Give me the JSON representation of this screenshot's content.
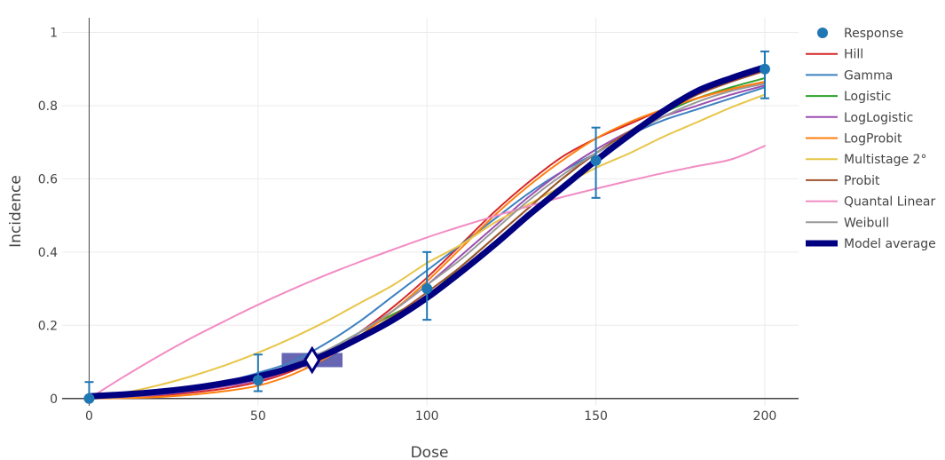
{
  "chart_data": {
    "type": "line",
    "xlabel": "Dose",
    "ylabel": "Incidence",
    "xlim": [
      -8,
      210
    ],
    "ylim": [
      -0.02,
      1.04
    ],
    "x_ticks": [
      0,
      50,
      100,
      150,
      200
    ],
    "x_tick_labels": [
      "0",
      "50",
      "100",
      "150",
      "200"
    ],
    "y_ticks": [
      0,
      0.2,
      0.4,
      0.6,
      0.8,
      1
    ],
    "y_tick_labels": [
      "0",
      "0.2",
      "0.4",
      "0.6",
      "0.8",
      "1"
    ],
    "grid": true,
    "legend_position": "right",
    "response": {
      "name": "Response",
      "color": "#1f77b4",
      "points": [
        {
          "x": 0,
          "y": 0,
          "lo": 0,
          "hi": 0.045
        },
        {
          "x": 50,
          "y": 0.05,
          "lo": 0.02,
          "hi": 0.12
        },
        {
          "x": 100,
          "y": 0.3,
          "lo": 0.215,
          "hi": 0.4
        },
        {
          "x": 150,
          "y": 0.65,
          "lo": 0.548,
          "hi": 0.74
        },
        {
          "x": 200,
          "y": 0.9,
          "lo": 0.82,
          "hi": 0.948
        }
      ]
    },
    "series": [
      {
        "name": "Hill",
        "color": "#d62728",
        "width": 2,
        "x": [
          0,
          10,
          20,
          30,
          40,
          50,
          60,
          70,
          80,
          90,
          100,
          110,
          120,
          130,
          140,
          150,
          160,
          170,
          180,
          190,
          200
        ],
        "y": [
          0,
          0.003,
          0.008,
          0.016,
          0.027,
          0.045,
          0.075,
          0.12,
          0.18,
          0.25,
          0.33,
          0.42,
          0.51,
          0.59,
          0.66,
          0.71,
          0.75,
          0.79,
          0.82,
          0.845,
          0.865
        ]
      },
      {
        "name": "Gamma",
        "color": "#3c80c0",
        "width": 2,
        "x": [
          0,
          10,
          20,
          30,
          40,
          50,
          60,
          70,
          80,
          90,
          100,
          110,
          120,
          130,
          140,
          150,
          160,
          170,
          180,
          190,
          200
        ],
        "y": [
          0,
          0.004,
          0.012,
          0.025,
          0.045,
          0.07,
          0.1,
          0.15,
          0.21,
          0.28,
          0.35,
          0.42,
          0.49,
          0.56,
          0.62,
          0.67,
          0.72,
          0.76,
          0.79,
          0.82,
          0.85
        ]
      },
      {
        "name": "Logistic",
        "color": "#2ca02c",
        "width": 2,
        "x": [
          0,
          10,
          20,
          30,
          40,
          50,
          60,
          70,
          80,
          90,
          100,
          110,
          120,
          130,
          140,
          150,
          160,
          170,
          180,
          190,
          200
        ],
        "y": [
          0.008,
          0.013,
          0.02,
          0.03,
          0.045,
          0.065,
          0.09,
          0.13,
          0.18,
          0.23,
          0.28,
          0.36,
          0.44,
          0.52,
          0.6,
          0.67,
          0.73,
          0.78,
          0.82,
          0.85,
          0.875
        ]
      },
      {
        "name": "LogLogistic",
        "color": "#9b4fb0",
        "width": 2,
        "x": [
          0,
          10,
          20,
          30,
          40,
          50,
          60,
          70,
          80,
          90,
          100,
          110,
          120,
          130,
          140,
          150,
          160,
          170,
          180,
          190,
          200
        ],
        "y": [
          0,
          0.003,
          0.01,
          0.02,
          0.033,
          0.05,
          0.08,
          0.12,
          0.18,
          0.24,
          0.31,
          0.39,
          0.47,
          0.55,
          0.62,
          0.68,
          0.73,
          0.77,
          0.8,
          0.83,
          0.855
        ]
      },
      {
        "name": "LogProbit",
        "color": "#ff7f0e",
        "width": 2,
        "x": [
          0,
          10,
          20,
          30,
          40,
          50,
          60,
          70,
          80,
          90,
          100,
          110,
          120,
          130,
          140,
          150,
          160,
          170,
          180,
          190,
          200
        ],
        "y": [
          0,
          0.001,
          0.004,
          0.01,
          0.02,
          0.035,
          0.065,
          0.11,
          0.17,
          0.24,
          0.32,
          0.41,
          0.5,
          0.58,
          0.65,
          0.71,
          0.755,
          0.79,
          0.82,
          0.845,
          0.865
        ]
      },
      {
        "name": "Multistage 2°",
        "color": "#e8c547",
        "width": 2,
        "x": [
          0,
          10,
          20,
          30,
          40,
          50,
          60,
          70,
          80,
          90,
          100,
          110,
          120,
          130,
          140,
          150,
          160,
          170,
          180,
          190,
          200
        ],
        "y": [
          0,
          0.015,
          0.035,
          0.06,
          0.09,
          0.125,
          0.165,
          0.21,
          0.26,
          0.31,
          0.37,
          0.42,
          0.48,
          0.53,
          0.58,
          0.63,
          0.67,
          0.715,
          0.755,
          0.795,
          0.83
        ]
      },
      {
        "name": "Probit",
        "color": "#a0522d",
        "width": 2,
        "x": [
          0,
          10,
          20,
          30,
          40,
          50,
          60,
          70,
          80,
          90,
          100,
          110,
          120,
          130,
          140,
          150,
          160,
          170,
          180,
          190,
          200
        ],
        "y": [
          0.007,
          0.012,
          0.019,
          0.029,
          0.043,
          0.063,
          0.09,
          0.125,
          0.17,
          0.225,
          0.29,
          0.36,
          0.44,
          0.52,
          0.6,
          0.67,
          0.73,
          0.785,
          0.83,
          0.865,
          0.895
        ]
      },
      {
        "name": "Quantal Linear",
        "color": "#f28cc4",
        "width": 2,
        "x": [
          0,
          10,
          20,
          30,
          40,
          50,
          60,
          70,
          80,
          90,
          100,
          110,
          120,
          130,
          140,
          150,
          160,
          170,
          180,
          190,
          200
        ],
        "y": [
          0,
          0.058,
          0.113,
          0.164,
          0.211,
          0.256,
          0.298,
          0.337,
          0.373,
          0.407,
          0.44,
          0.47,
          0.498,
          0.525,
          0.55,
          0.573,
          0.595,
          0.616,
          0.635,
          0.653,
          0.69
        ]
      },
      {
        "name": "Weibull",
        "color": "#999999",
        "width": 2,
        "x": [
          0,
          10,
          20,
          30,
          40,
          50,
          60,
          70,
          80,
          90,
          100,
          110,
          120,
          130,
          140,
          150,
          160,
          170,
          180,
          190,
          200
        ],
        "y": [
          0,
          0.004,
          0.012,
          0.024,
          0.04,
          0.06,
          0.09,
          0.13,
          0.18,
          0.24,
          0.31,
          0.38,
          0.46,
          0.54,
          0.61,
          0.67,
          0.72,
          0.77,
          0.81,
          0.84,
          0.86
        ]
      },
      {
        "name": "Model average",
        "color": "#000080",
        "width": 7,
        "x": [
          0,
          10,
          20,
          30,
          40,
          50,
          60,
          70,
          80,
          90,
          100,
          110,
          120,
          130,
          140,
          150,
          160,
          170,
          180,
          190,
          200
        ],
        "y": [
          0.006,
          0.011,
          0.018,
          0.028,
          0.042,
          0.06,
          0.085,
          0.12,
          0.165,
          0.215,
          0.275,
          0.345,
          0.42,
          0.5,
          0.575,
          0.65,
          0.72,
          0.785,
          0.84,
          0.875,
          0.905
        ]
      }
    ],
    "bmd_marker": {
      "x": 66,
      "y": 0.105,
      "lower": 57,
      "upper": 75,
      "color": "#000080"
    }
  }
}
